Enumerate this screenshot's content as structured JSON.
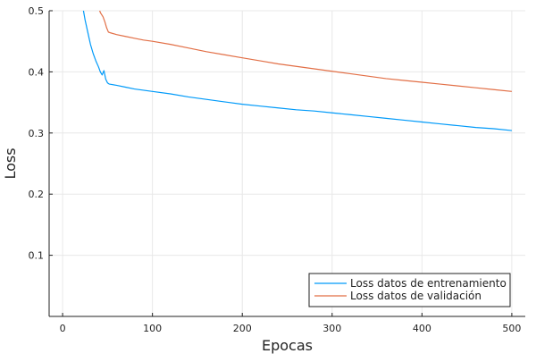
{
  "chart_data": {
    "type": "line",
    "title": "",
    "xlabel": "Epocas",
    "ylabel": "Loss",
    "xlim": [
      -15,
      515
    ],
    "ylim": [
      0.0,
      0.5
    ],
    "xticks": [
      0,
      100,
      200,
      300,
      400,
      500
    ],
    "xtick_labels": [
      "0",
      "100",
      "200",
      "300",
      "400",
      "500"
    ],
    "yticks": [
      0.1,
      0.2,
      0.3,
      0.4,
      0.5
    ],
    "ytick_labels": [
      "0.1",
      "0.2",
      "0.3",
      "0.4",
      "0.5"
    ],
    "grid": true,
    "legend_position": "bottom-right",
    "series": [
      {
        "name": "Loss datos de entrenamiento",
        "color": "#009af9",
        "x": [
          22,
          25,
          28,
          31,
          34,
          37,
          40,
          42,
          44,
          46,
          48,
          50,
          52,
          60,
          70,
          80,
          90,
          100,
          120,
          140,
          160,
          180,
          200,
          220,
          240,
          260,
          280,
          300,
          320,
          340,
          360,
          380,
          400,
          420,
          440,
          460,
          480,
          500
        ],
        "y": [
          0.51,
          0.485,
          0.465,
          0.445,
          0.43,
          0.418,
          0.408,
          0.4,
          0.395,
          0.402,
          0.388,
          0.382,
          0.38,
          0.378,
          0.375,
          0.372,
          0.37,
          0.368,
          0.364,
          0.359,
          0.355,
          0.351,
          0.347,
          0.344,
          0.341,
          0.338,
          0.336,
          0.333,
          0.33,
          0.327,
          0.324,
          0.321,
          0.318,
          0.315,
          0.312,
          0.309,
          0.307,
          0.304
        ]
      },
      {
        "name": "Loss datos de validación",
        "color": "#e26f46",
        "x": [
          39,
          42,
          45,
          47,
          49,
          51,
          53,
          60,
          70,
          80,
          90,
          100,
          120,
          140,
          160,
          180,
          200,
          220,
          240,
          260,
          280,
          300,
          320,
          340,
          360,
          380,
          400,
          420,
          440,
          460,
          480,
          500
        ],
        "y": [
          0.51,
          0.497,
          0.49,
          0.482,
          0.472,
          0.465,
          0.464,
          0.461,
          0.458,
          0.455,
          0.452,
          0.45,
          0.445,
          0.439,
          0.433,
          0.428,
          0.423,
          0.418,
          0.413,
          0.409,
          0.405,
          0.401,
          0.397,
          0.393,
          0.389,
          0.386,
          0.383,
          0.38,
          0.377,
          0.374,
          0.371,
          0.368
        ]
      }
    ]
  }
}
